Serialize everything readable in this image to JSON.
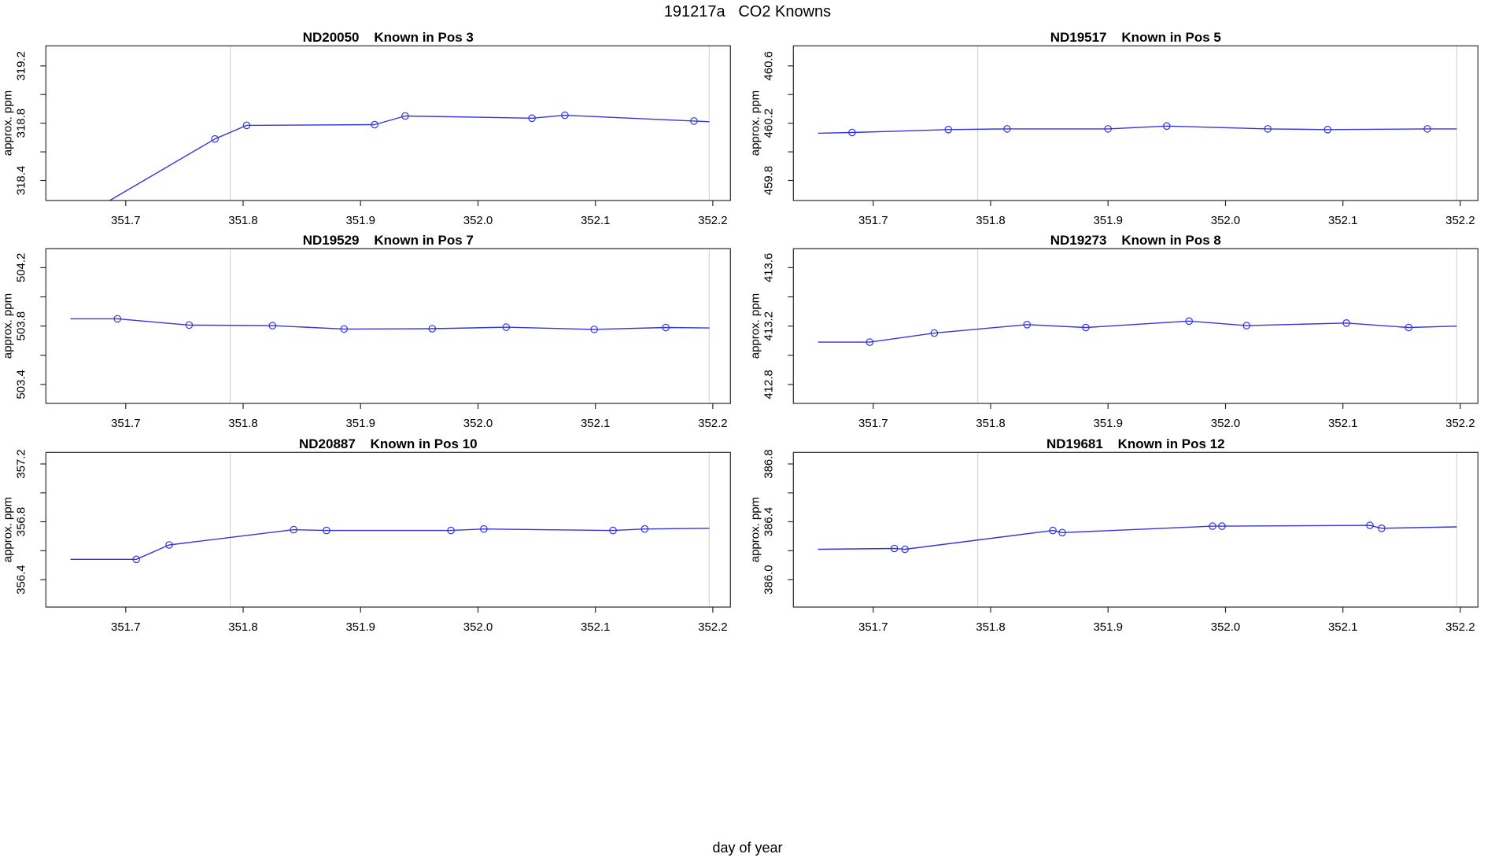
{
  "chart_data": {
    "type": "line",
    "title": "191217a   CO2 Knowns",
    "xlabel": "day of year",
    "ylabel": "approx. ppm",
    "xlim": [
      351.632,
      352.215
    ],
    "xticks": [
      351.7,
      351.8,
      351.9,
      352.0,
      352.1,
      352.2
    ],
    "xtick_labels": [
      "351.7",
      "351.8",
      "351.9",
      "352.0",
      "352.1",
      "352.2"
    ],
    "vlines": [
      351.789,
      352.197
    ],
    "grid": "vertical-event-lines-only",
    "legend": "none",
    "colors": {
      "line": "#3434dd",
      "marker": "#3434dd",
      "event_line": "#d3d3d3",
      "frame": "#2a2a2a",
      "text": "#000000"
    },
    "panels": [
      {
        "sensor": "ND20050",
        "pos_label": "Known in Pos 3",
        "ylim": [
          318.26,
          319.34
        ],
        "yticks_major": [
          318.4,
          318.8,
          319.2
        ],
        "ytick_labels": [
          "318.4",
          "318.8",
          "319.2"
        ],
        "yticks_minor": [
          318.6,
          319.0
        ],
        "lead": null,
        "points": [
          [
            351.653,
            318.1
          ],
          [
            351.776,
            318.69
          ],
          [
            351.803,
            318.785
          ],
          [
            351.912,
            318.79
          ],
          [
            351.938,
            318.85
          ],
          [
            352.046,
            318.835
          ],
          [
            352.074,
            318.855
          ],
          [
            352.184,
            318.815
          ]
        ],
        "tail": [
          352.197,
          318.81
        ]
      },
      {
        "sensor": "ND19517",
        "pos_label": "Known in Pos 5",
        "ylim": [
          459.66,
          460.74
        ],
        "yticks_major": [
          459.8,
          460.2,
          460.6
        ],
        "ytick_labels": [
          "459.8",
          "460.2",
          "460.6"
        ],
        "yticks_minor": [
          460.0,
          460.4
        ],
        "lead": [
          351.653,
          460.13
        ],
        "points": [
          [
            351.682,
            460.135
          ],
          [
            351.764,
            460.155
          ],
          [
            351.814,
            460.16
          ],
          [
            351.9,
            460.16
          ],
          [
            351.95,
            460.18
          ],
          [
            352.036,
            460.16
          ],
          [
            352.087,
            460.155
          ],
          [
            352.172,
            460.16
          ]
        ],
        "tail": [
          352.197,
          460.16
        ]
      },
      {
        "sensor": "ND19529",
        "pos_label": "Known in Pos 7",
        "ylim": [
          503.27,
          504.33
        ],
        "yticks_major": [
          503.4,
          503.8,
          504.2
        ],
        "ytick_labels": [
          "503.4",
          "503.8",
          "504.2"
        ],
        "yticks_minor": [
          503.6,
          504.0
        ],
        "lead": [
          351.653,
          503.85
        ],
        "points": [
          [
            351.693,
            503.85
          ],
          [
            351.754,
            503.807
          ],
          [
            351.825,
            503.803
          ],
          [
            351.886,
            503.78
          ],
          [
            351.961,
            503.782
          ],
          [
            352.024,
            503.792
          ],
          [
            352.099,
            503.777
          ],
          [
            352.16,
            503.79
          ]
        ],
        "tail": [
          352.197,
          503.787
        ]
      },
      {
        "sensor": "ND19273",
        "pos_label": "Known in Pos 8",
        "ylim": [
          412.67,
          413.73
        ],
        "yticks_major": [
          412.8,
          413.2,
          413.6
        ],
        "ytick_labels": [
          "412.8",
          "413.2",
          "413.6"
        ],
        "yticks_minor": [
          413.0,
          413.4
        ],
        "lead": [
          351.653,
          413.09
        ],
        "points": [
          [
            351.697,
            413.09
          ],
          [
            351.752,
            413.152
          ],
          [
            351.831,
            413.21
          ],
          [
            351.881,
            413.19
          ],
          [
            351.969,
            413.234
          ],
          [
            352.018,
            413.203
          ],
          [
            352.103,
            413.221
          ],
          [
            352.156,
            413.19
          ]
        ],
        "tail": [
          352.197,
          413.2
        ]
      },
      {
        "sensor": "ND20887",
        "pos_label": "Known in Pos 10",
        "ylim": [
          356.21,
          357.28
        ],
        "yticks_major": [
          356.4,
          356.8,
          357.2
        ],
        "ytick_labels": [
          "356.4",
          "356.8",
          "357.2"
        ],
        "yticks_minor": [
          356.6,
          357.0
        ],
        "lead": [
          351.653,
          356.54
        ],
        "points": [
          [
            351.709,
            356.54
          ],
          [
            351.737,
            356.64
          ],
          [
            351.843,
            356.745
          ],
          [
            351.871,
            356.74
          ],
          [
            351.977,
            356.74
          ],
          [
            352.005,
            356.75
          ],
          [
            352.115,
            356.74
          ],
          [
            352.142,
            356.75
          ]
        ],
        "tail": [
          352.197,
          356.755
        ]
      },
      {
        "sensor": "ND19681",
        "pos_label": "Known in Pos 12",
        "ylim": [
          385.81,
          386.88
        ],
        "yticks_major": [
          386.0,
          386.4,
          386.8
        ],
        "ytick_labels": [
          "386.0",
          "386.4",
          "386.8"
        ],
        "yticks_minor": [
          386.2,
          386.6
        ],
        "lead": [
          351.653,
          386.21
        ],
        "points": [
          [
            351.718,
            386.215
          ],
          [
            351.727,
            386.21
          ],
          [
            351.853,
            386.34
          ],
          [
            351.861,
            386.325
          ],
          [
            351.989,
            386.37
          ],
          [
            351.997,
            386.37
          ],
          [
            352.123,
            386.375
          ],
          [
            352.133,
            386.355
          ]
        ],
        "tail": [
          352.197,
          386.365
        ]
      }
    ]
  }
}
